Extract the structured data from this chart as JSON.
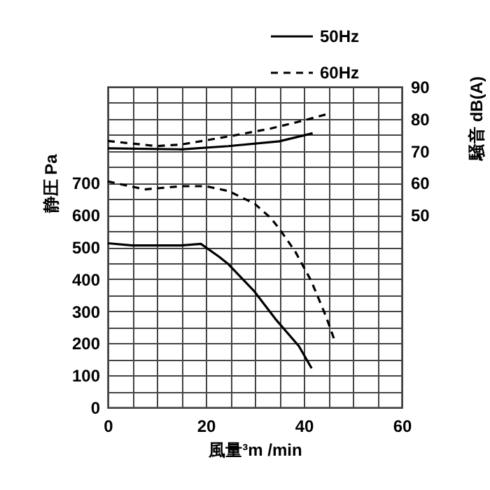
{
  "chart_data": {
    "type": "line",
    "xlabel": "風量³m /min",
    "ylabel": "静圧 Pa",
    "y2label": "騒音 dB(A)",
    "xlim": [
      0,
      60
    ],
    "xticks": [
      0,
      {
        "value": 5,
        "label": null
      },
      {
        "value": 10,
        "label": null
      },
      {
        "value": 15,
        "label": null
      },
      20,
      {
        "value": 25,
        "label": null
      },
      {
        "value": 30,
        "label": null
      },
      {
        "value": 35,
        "label": null
      },
      40,
      {
        "value": 45,
        "label": null
      },
      {
        "value": 50,
        "label": null
      },
      {
        "value": 55,
        "label": null
      },
      60
    ],
    "ylim": [
      0,
      1000
    ],
    "yticks": [
      0,
      {
        "value": 50,
        "label": null
      },
      100,
      {
        "value": 150,
        "label": null
      },
      200,
      {
        "value": 250,
        "label": null
      },
      300,
      {
        "value": 350,
        "label": null
      },
      400,
      {
        "value": 450,
        "label": null
      },
      500,
      {
        "value": 550,
        "label": null
      },
      600,
      {
        "value": 650,
        "label": null
      },
      700,
      {
        "value": 750,
        "label": null
      },
      {
        "value": 800,
        "label": null
      },
      {
        "value": 850,
        "label": null
      },
      {
        "value": 900,
        "label": null
      },
      {
        "value": 950,
        "label": null
      },
      {
        "value": 1000,
        "label": null
      }
    ],
    "y2lim": [
      -10,
      90
    ],
    "y2ticks": [
      50,
      60,
      70,
      80,
      90
    ],
    "grid": true,
    "legend": "top right",
    "series": [
      {
        "name": "50Hz",
        "color": "#000000",
        "line_style": "solid",
        "x": [
          0,
          5,
          15,
          19,
          22.7,
          24.6,
          29.9,
          34.2,
          39,
          41.6
        ],
        "values": [
          512,
          505,
          505,
          510,
          470,
          447,
          362,
          276,
          191,
          122
        ]
      },
      {
        "name": "60Hz",
        "color": "#000000",
        "line_style": "dashed",
        "x": [
          0,
          7.5,
          15,
          20,
          24.6,
          30,
          33.3,
          35.1,
          38.3,
          41.5,
          44.5,
          46.5
        ],
        "values": [
          705,
          680,
          690,
          690,
          675,
          635,
          590,
          555,
          485,
          395,
          285,
          200
        ]
      },
      {
        "color": "#000000",
        "line_style": "solid",
        "axis": "y2",
        "x": [
          0,
          15,
          24.6,
          35,
          41.8
        ],
        "values": [
          70.8,
          70.5,
          71.5,
          73,
          75.5
        ]
      },
      {
        "color": "#000000",
        "line_style": "dashed",
        "axis": "y2",
        "x": [
          0,
          10,
          15,
          24.6,
          33.3,
          40,
          44.8
        ],
        "values": [
          73.1,
          71.5,
          72,
          74.5,
          77,
          79.5,
          81.5
        ]
      }
    ]
  }
}
